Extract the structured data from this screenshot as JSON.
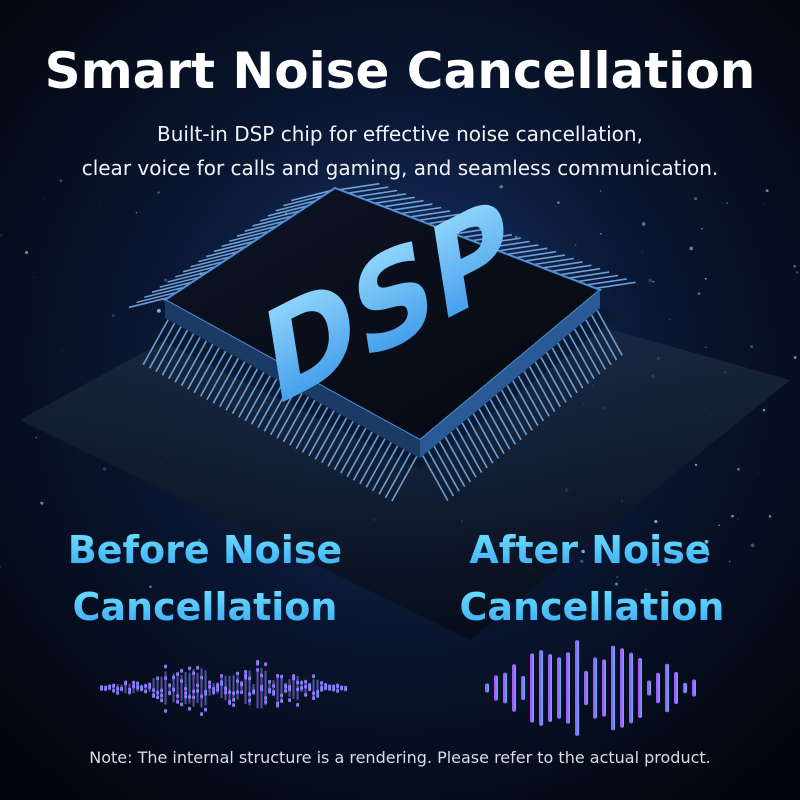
{
  "header": {
    "title": "Smart Noise Cancellation",
    "subtitle": [
      "Built-in DSP chip for effective noise cancellation,",
      "clear voice for calls and gaming, and seamless communication."
    ]
  },
  "chip": {
    "label": "DSP"
  },
  "comparison": {
    "before": [
      "Before Noise",
      "Cancellation"
    ],
    "after": [
      "After Noise",
      "Cancellation"
    ]
  },
  "footer": {
    "note": "Note: The internal structure is a rendering. Please refer to the actual product."
  }
}
